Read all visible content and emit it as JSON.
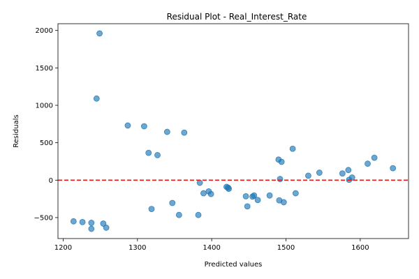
{
  "chart_data": {
    "type": "scatter",
    "title": "Residual Plot - Real_Interest_Rate",
    "xlabel": "Predicted values",
    "ylabel": "Residuals",
    "xlim": [
      1193,
      1665
    ],
    "ylim": [
      -780,
      2090
    ],
    "xticks": [
      1200,
      1300,
      1400,
      1500,
      1600
    ],
    "yticks": [
      -500,
      0,
      500,
      1000,
      1500,
      2000
    ],
    "grid": false,
    "point_color": "#1f77b4",
    "reference_line": {
      "y": 0,
      "color": "#e31a1c",
      "style": "dashed"
    },
    "points": [
      {
        "x": 1249,
        "y": 1960
      },
      {
        "x": 1245,
        "y": 1090
      },
      {
        "x": 1287,
        "y": 730
      },
      {
        "x": 1309,
        "y": 720
      },
      {
        "x": 1340,
        "y": 645
      },
      {
        "x": 1363,
        "y": 635
      },
      {
        "x": 1315,
        "y": 365
      },
      {
        "x": 1327,
        "y": 335
      },
      {
        "x": 1509,
        "y": 420
      },
      {
        "x": 1490,
        "y": 275
      },
      {
        "x": 1494,
        "y": 245
      },
      {
        "x": 1619,
        "y": 300
      },
      {
        "x": 1610,
        "y": 220
      },
      {
        "x": 1644,
        "y": 160
      },
      {
        "x": 1584,
        "y": 135
      },
      {
        "x": 1545,
        "y": 100
      },
      {
        "x": 1576,
        "y": 90
      },
      {
        "x": 1530,
        "y": 60
      },
      {
        "x": 1589,
        "y": 35
      },
      {
        "x": 1585,
        "y": 5
      },
      {
        "x": 1492,
        "y": 15
      },
      {
        "x": 1384,
        "y": -35
      },
      {
        "x": 1420,
        "y": -90
      },
      {
        "x": 1423,
        "y": -115
      },
      {
        "x": 1422,
        "y": -100
      },
      {
        "x": 1396,
        "y": -150
      },
      {
        "x": 1389,
        "y": -175
      },
      {
        "x": 1399,
        "y": -185
      },
      {
        "x": 1513,
        "y": -175
      },
      {
        "x": 1457,
        "y": -205
      },
      {
        "x": 1446,
        "y": -215
      },
      {
        "x": 1455,
        "y": -220
      },
      {
        "x": 1478,
        "y": -205
      },
      {
        "x": 1462,
        "y": -265
      },
      {
        "x": 1491,
        "y": -270
      },
      {
        "x": 1497,
        "y": -295
      },
      {
        "x": 1347,
        "y": -305
      },
      {
        "x": 1448,
        "y": -350
      },
      {
        "x": 1319,
        "y": -385
      },
      {
        "x": 1356,
        "y": -465
      },
      {
        "x": 1382,
        "y": -465
      },
      {
        "x": 1214,
        "y": -550
      },
      {
        "x": 1226,
        "y": -560
      },
      {
        "x": 1238,
        "y": -570
      },
      {
        "x": 1254,
        "y": -580
      },
      {
        "x": 1238,
        "y": -650
      },
      {
        "x": 1258,
        "y": -635
      }
    ]
  }
}
